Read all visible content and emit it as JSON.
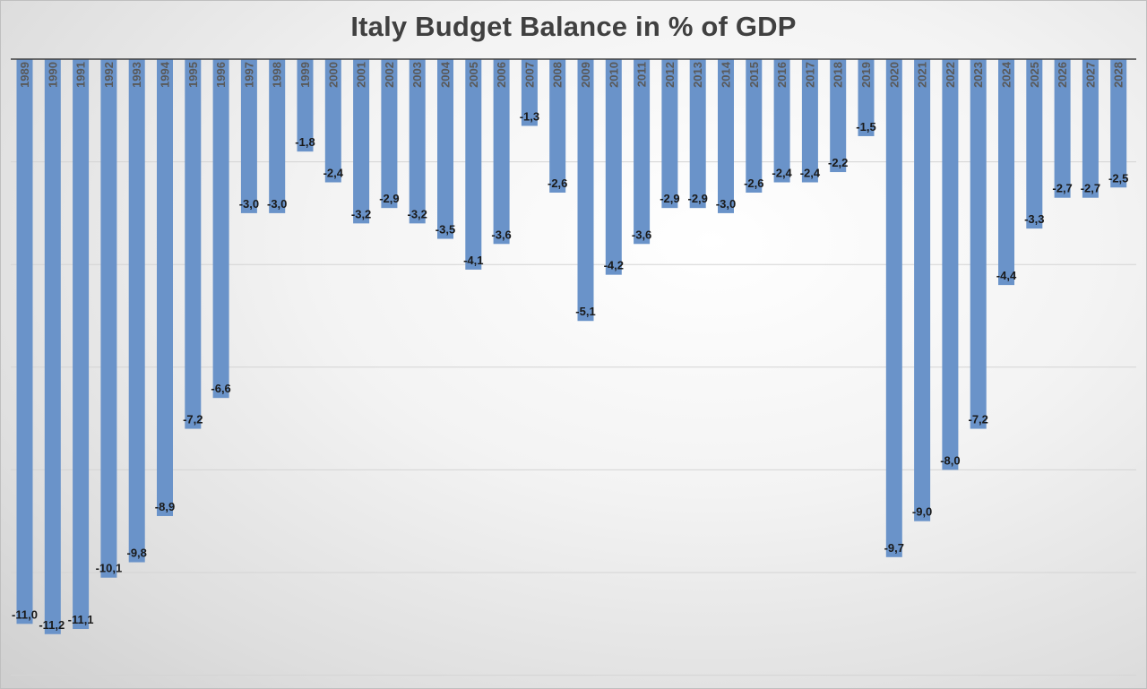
{
  "chart_data": {
    "type": "bar",
    "title": "Italy Budget Balance in % of GDP",
    "xlabel": "",
    "ylabel": "",
    "ylim": [
      -12,
      0
    ],
    "grid": true,
    "legend": "none",
    "bar_color": "#6a93c9",
    "categories": [
      "1989",
      "1990",
      "1991",
      "1992",
      "1993",
      "1994",
      "1995",
      "1996",
      "1997",
      "1998",
      "1999",
      "2000",
      "2001",
      "2002",
      "2003",
      "2004",
      "2005",
      "2006",
      "2007",
      "2008",
      "2009",
      "2010",
      "2011",
      "2012",
      "2013",
      "2014",
      "2015",
      "2016",
      "2017",
      "2018",
      "2019",
      "2020",
      "2021",
      "2022",
      "2023",
      "2024",
      "2025",
      "2026",
      "2027",
      "2028"
    ],
    "values": [
      -11.0,
      -11.2,
      -11.1,
      -10.1,
      -9.8,
      -8.9,
      -7.2,
      -6.6,
      -3.0,
      -3.0,
      -1.8,
      -2.4,
      -3.2,
      -2.9,
      -3.2,
      -3.5,
      -4.1,
      -3.6,
      -1.3,
      -2.6,
      -5.1,
      -4.2,
      -3.6,
      -2.9,
      -2.9,
      -3.0,
      -2.6,
      -2.4,
      -2.4,
      -2.2,
      -1.5,
      -9.7,
      -9.0,
      -8.0,
      -7.2,
      -4.4,
      -3.3,
      -2.7,
      -2.7,
      -2.5
    ],
    "value_labels": [
      "-11,0",
      "-11,2",
      "-11,1",
      "-10,1",
      "-9,8",
      "-8,9",
      "-7,2",
      "-6,6",
      "-3,0",
      "-3,0",
      "-1,8",
      "-2,4",
      "-3,2",
      "-2,9",
      "-3,2",
      "-3,5",
      "-4,1",
      "-3,6",
      "-1,3",
      "-2,6",
      "-5,1",
      "-4,2",
      "-3,6",
      "-2,9",
      "-2,9",
      "-3,0",
      "-2,6",
      "-2,4",
      "-2,4",
      "-2,2",
      "-1,5",
      "-9,7",
      "-9,0",
      "-8,0",
      "-7,2",
      "-4,4",
      "-3,3",
      "-2,7",
      "-2,7",
      "-2,5"
    ]
  }
}
